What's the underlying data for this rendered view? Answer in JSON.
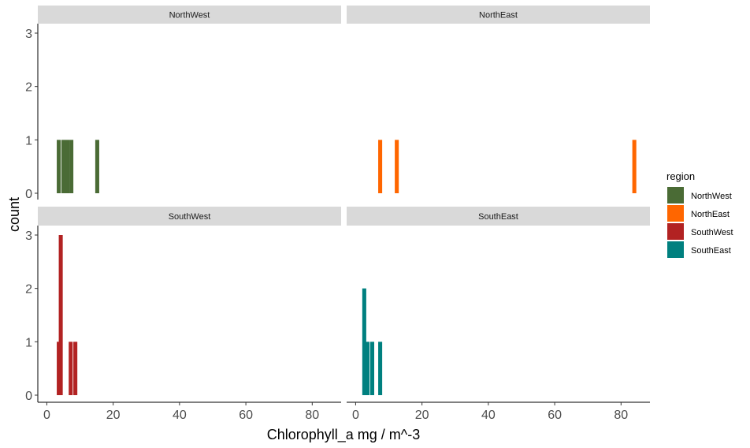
{
  "chart_data": {
    "type": "bar",
    "subtype": "faceted-histogram",
    "xlabel": "Chlorophyll_a mg / m^-3",
    "ylabel": "count",
    "xlim": [
      -2,
      88
    ],
    "ylim": [
      0,
      3.1
    ],
    "x_ticks": [
      0,
      20,
      40,
      60,
      80
    ],
    "y_ticks": [
      0,
      1,
      2,
      3
    ],
    "grid": false,
    "bin_width": 1.2,
    "legend": {
      "title": "region",
      "placement": "right",
      "entries": [
        {
          "name": "NorthWest",
          "color": "#4a6b35"
        },
        {
          "name": "NorthEast",
          "color": "#ff6600"
        },
        {
          "name": "SouthWest",
          "color": "#b22222"
        },
        {
          "name": "SouthEast",
          "color": "#00807f"
        }
      ]
    },
    "facets": [
      {
        "name": "NorthWest",
        "color": "#4a6b35",
        "bins": [
          {
            "x": 3.6,
            "count": 1
          },
          {
            "x": 5.0,
            "count": 1
          },
          {
            "x": 6.2,
            "count": 1
          },
          {
            "x": 7.4,
            "count": 1
          },
          {
            "x": 15.2,
            "count": 1
          }
        ]
      },
      {
        "name": "NorthEast",
        "color": "#ff6600",
        "bins": [
          {
            "x": 7.4,
            "count": 1
          },
          {
            "x": 12.4,
            "count": 1
          },
          {
            "x": 84.0,
            "count": 1
          }
        ]
      },
      {
        "name": "SouthWest",
        "color": "#b22222",
        "bins": [
          {
            "x": 3.6,
            "count": 1
          },
          {
            "x": 4.2,
            "count": 3
          },
          {
            "x": 7.2,
            "count": 1
          },
          {
            "x": 8.6,
            "count": 1
          }
        ]
      },
      {
        "name": "SouthEast",
        "color": "#00807f",
        "bins": [
          {
            "x": 2.6,
            "count": 2
          },
          {
            "x": 3.6,
            "count": 1
          },
          {
            "x": 5.0,
            "count": 1
          },
          {
            "x": 7.4,
            "count": 1
          }
        ]
      }
    ]
  }
}
